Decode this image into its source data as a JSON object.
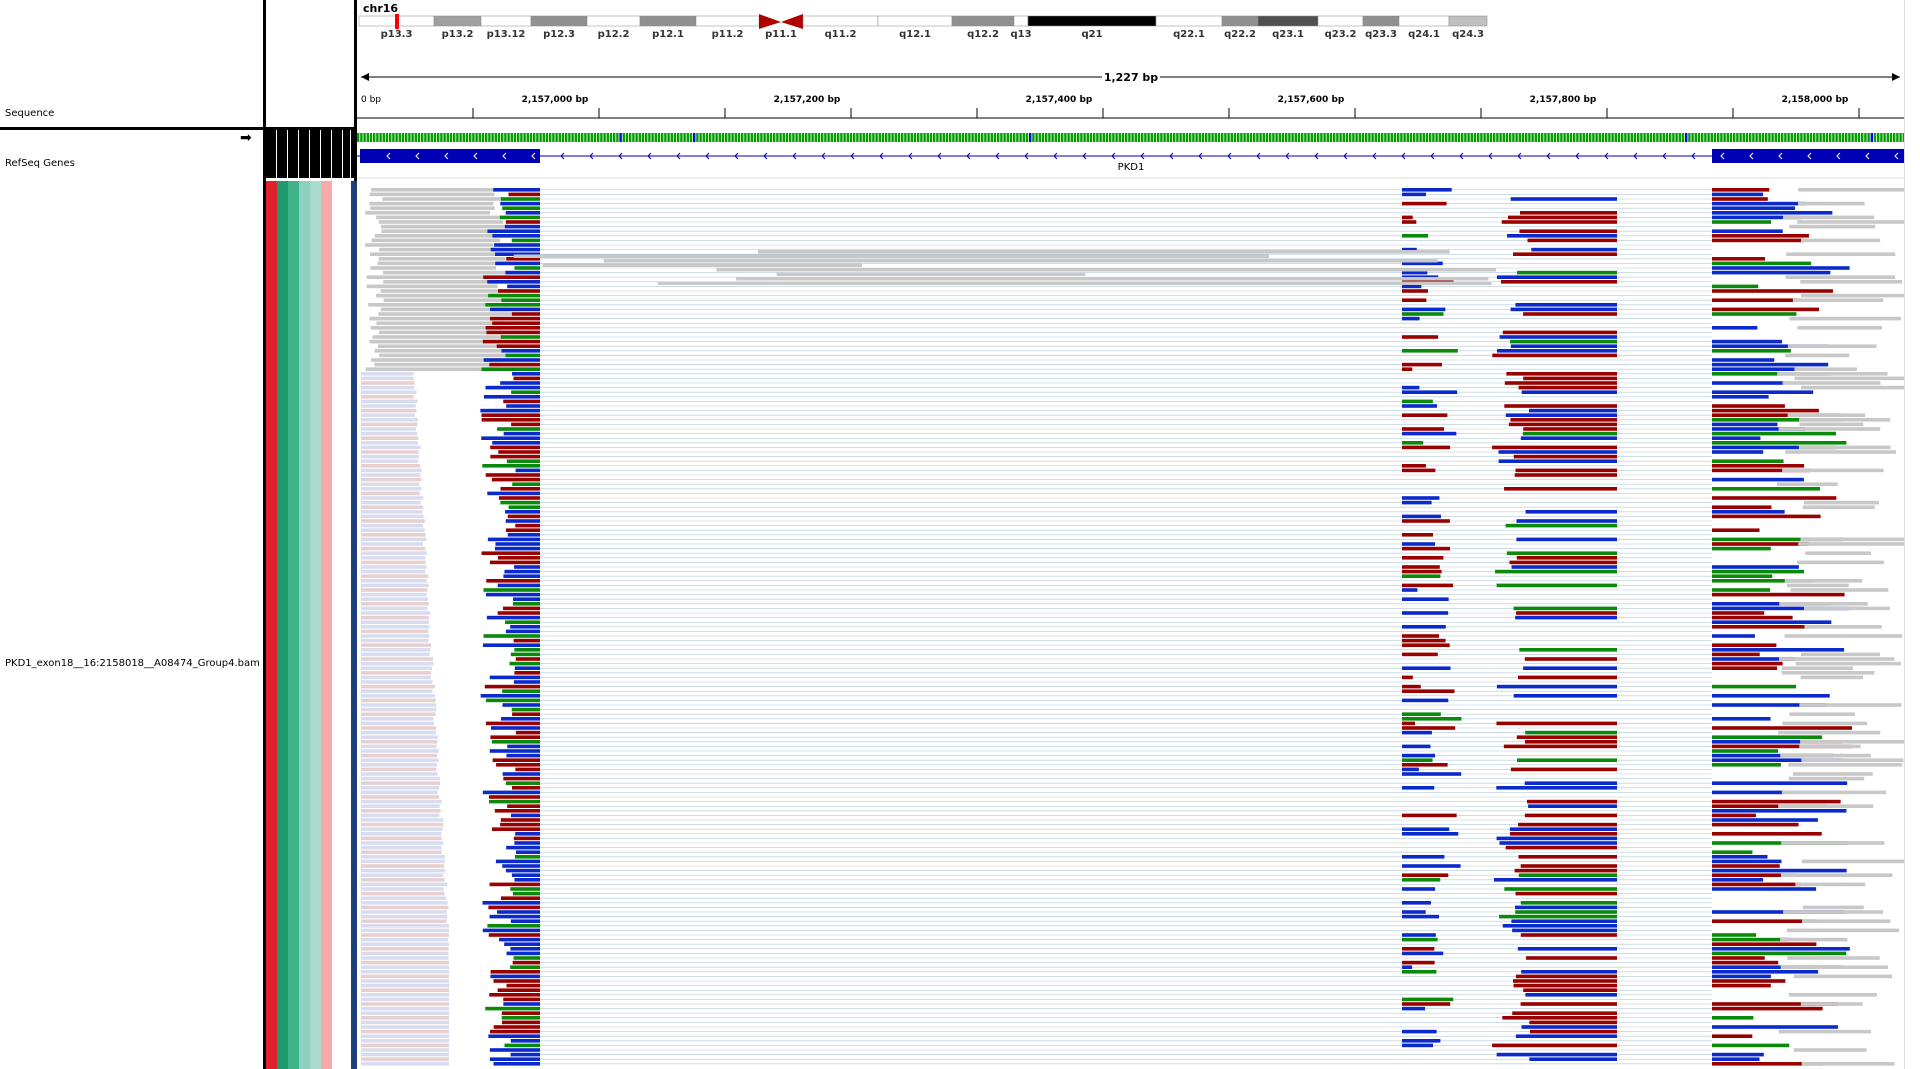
{
  "chromosome": {
    "name": "chr16",
    "bands": [
      {
        "label": "p13.3",
        "color": "#ffffff"
      },
      {
        "label": "p13.2",
        "color": "#a0a0a0"
      },
      {
        "label": "p13.12",
        "color": "#ffffff"
      },
      {
        "label": "p12.3",
        "color": "#909090"
      },
      {
        "label": "p12.2",
        "color": "#ffffff"
      },
      {
        "label": "p12.1",
        "color": "#909090"
      },
      {
        "label": "p11.2",
        "color": "#ffffff"
      },
      {
        "label": "p11.1",
        "color": "#b00000"
      },
      {
        "label": "q11.2",
        "color": "#ffffff"
      },
      {
        "label": "q12.1",
        "color": "#ffffff"
      },
      {
        "label": "q12.2",
        "color": "#909090"
      },
      {
        "label": "q13",
        "color": "#ffffff"
      },
      {
        "label": "q21",
        "color": "#000000"
      },
      {
        "label": "q22.1",
        "color": "#ffffff"
      },
      {
        "label": "q22.2",
        "color": "#909090"
      },
      {
        "label": "q23.1",
        "color": "#505050"
      },
      {
        "label": "q23.2",
        "color": "#ffffff"
      },
      {
        "label": "q23.3",
        "color": "#909090"
      },
      {
        "label": "q24.1",
        "color": "#ffffff"
      },
      {
        "label": "q24.3",
        "color": "#c0c0c0"
      }
    ]
  },
  "ruler": {
    "span_label": "1,227 bp",
    "start_label": "0 bp",
    "tick_labels": [
      "2,157,000 bp",
      "2,157,200 bp",
      "2,157,400 bp",
      "2,157,600 bp",
      "2,157,800 bp",
      "2,158,000 bp"
    ]
  },
  "tracks": {
    "sequence_label": "Sequence",
    "refseq_label": "RefSeq Genes",
    "gene_name": "PKD1",
    "alignment_label": "PKD1_exon18__16:2158018__A08474_Group4.bam"
  },
  "attribute_colors": [
    "#e0232a",
    "#1f9a6f",
    "#3fb48a",
    "#8fcfbf",
    "#a9dccf",
    "#f7aaa8",
    "#ffffff",
    "#ffffff",
    "#1d3e7a"
  ],
  "colors": {
    "gene_blue": "#0000b4",
    "read_gray": "#c8c8c8",
    "read_red": "#990000",
    "read_blue": "#0a2acb",
    "read_green": "#0a8a0a",
    "split_line": "#b0c8d8"
  }
}
